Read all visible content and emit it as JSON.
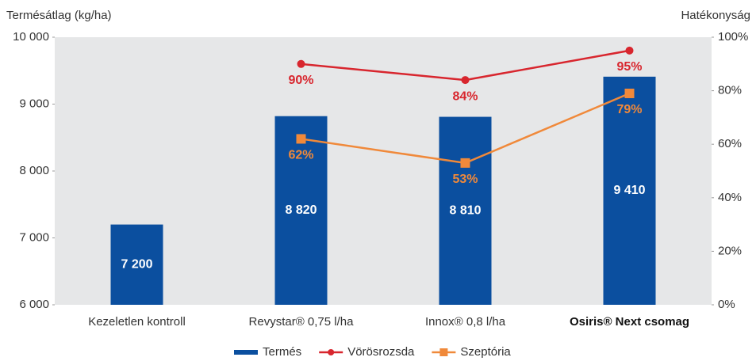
{
  "chart_data": {
    "type": "bar_line",
    "y_label": "Termésátlag (kg/ha)",
    "y2_label": "Hatékonyság",
    "categories": [
      "Kezeletlen kontroll",
      "Revystar® 0,75 l/ha",
      "Innox® 0,8 l/ha",
      "Osiris® Next csomag"
    ],
    "series": [
      {
        "name": "Termés",
        "type": "bar",
        "color": "#0b4f9f",
        "values": [
          7200,
          8820,
          8810,
          9410
        ],
        "value_labels": [
          "7 200",
          "8 820",
          "8 810",
          "9 410"
        ]
      },
      {
        "name": "Vörösrozsda",
        "type": "line",
        "marker": "circle",
        "axis": "y2",
        "color": "#d8262e",
        "values": [
          null,
          90,
          84,
          95
        ],
        "value_labels": [
          null,
          "90%",
          "84%",
          "95%"
        ]
      },
      {
        "name": "Szeptória",
        "type": "line",
        "marker": "square",
        "axis": "y2",
        "color": "#f0893a",
        "values": [
          null,
          62,
          53,
          79
        ],
        "value_labels": [
          null,
          "62%",
          "53%",
          "79%"
        ]
      }
    ],
    "ylim": [
      6000,
      10000
    ],
    "yticks": [
      {
        "value": 6000,
        "label": "6 000"
      },
      {
        "value": 7000,
        "label": "7 000"
      },
      {
        "value": 8000,
        "label": "8 000"
      },
      {
        "value": 9000,
        "label": "9 000"
      },
      {
        "value": 10000,
        "label": "10 000"
      }
    ],
    "y2lim": [
      0,
      100
    ],
    "y2ticks": [
      {
        "value": 0,
        "label": "0%"
      },
      {
        "value": 20,
        "label": "20%"
      },
      {
        "value": 40,
        "label": "40%"
      },
      {
        "value": 60,
        "label": "60%"
      },
      {
        "value": 80,
        "label": "80%"
      },
      {
        "value": 100,
        "label": "100%"
      }
    ],
    "legend": "bottom"
  }
}
